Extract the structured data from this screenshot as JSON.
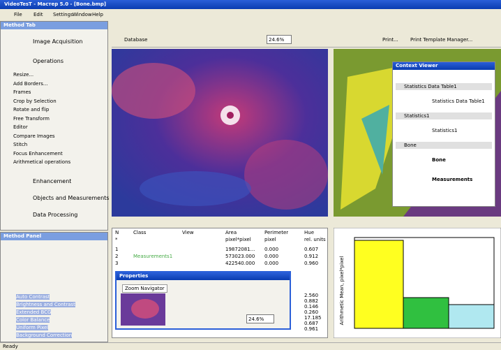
{
  "window": {
    "title": "VideoTesT - Мастер 5.0 - [Bone.bmp]"
  },
  "menu": [
    "File",
    "Edit",
    "Settings",
    "Window",
    "Help"
  ],
  "method_tab": {
    "title": "Method Tab",
    "groups": [
      "Image Acquisition",
      "Operations"
    ],
    "operations": [
      "Resize...",
      "Add Borders...",
      "Frames",
      "Crop by Selection",
      "Rotate and flip",
      "Free Transform",
      "Editor",
      "Compare Images",
      "Stitch",
      "Focus Enhancement",
      "Arithmetical operations"
    ],
    "groups2": [
      "Enhancement",
      "Objects and Measurements",
      "Data Processing"
    ]
  },
  "method_panel": {
    "title": "Method Panel",
    "items": [
      "Auto Contrast",
      "Brightness and Contrast",
      "Extended BCG",
      "Color Balance",
      "Uniform Pixel",
      "Background Correction"
    ]
  },
  "toolbar": {
    "database": "Database",
    "zoom": "24.6%",
    "print": "Print...",
    "template": "Print Template Manager..."
  },
  "context_viewer": {
    "title": "Context Viewer",
    "sections": [
      {
        "header": "Statistics Data Table1",
        "items": [
          "Statistics Data Table1"
        ]
      },
      {
        "header": "Statistics1",
        "items": [
          "Statistics1"
        ]
      },
      {
        "header": "Bone",
        "items": [
          "Bone",
          "Measurements"
        ]
      }
    ]
  },
  "table": {
    "columns": [
      "N",
      "Class",
      "View",
      "Area",
      "Perimeter",
      "Hue"
    ],
    "units": {
      "n": "*",
      "area": "pixel*pixel",
      "perimeter": "pixel",
      "hue": "rel. units"
    },
    "rows": [
      {
        "n": "1",
        "area": "19872081...",
        "perimeter": "0.000",
        "hue": "0.607"
      },
      {
        "n": "2",
        "class": "Measurements1",
        "area": "573023.000",
        "perimeter": "0.000",
        "hue": "0.912"
      },
      {
        "n": "3",
        "area": "422540.000",
        "perimeter": "0.000",
        "hue": "0.960"
      }
    ],
    "hue_more": [
      "2.560",
      "0.882",
      "0.146",
      "0.260",
      "17.185",
      "0.687",
      "0.961"
    ]
  },
  "properties": {
    "title": "Properties",
    "tab": "Zoom Navigator",
    "zoom": "24.6%"
  },
  "chart": {
    "y_label": "Arithmetic Mean, pixel*pixel"
  },
  "status": {
    "left": "Ready"
  }
}
